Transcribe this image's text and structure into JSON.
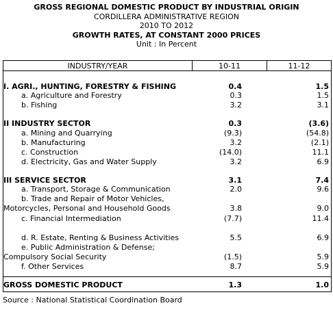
{
  "titles": {
    "line1": "GROSS REGIONAL DOMESTIC PRODUCT BY INDUSTRIAL ORIGIN",
    "line2": "CORDILLERA ADMINISTRATIVE REGION",
    "line3": "2010 TO 2012",
    "line4": "GROWTH RATES, AT CONSTANT 2000 PRICES",
    "line5": "Unit : In Percent"
  },
  "table": {
    "headers": [
      "INDUSTRY/YEAR",
      "10-11",
      "11-12"
    ],
    "rows": [
      {
        "label": "I. AGRI., HUNTING, FORESTRY & FISHING",
        "v1": "0.4",
        "v2": "1.5"
      },
      {
        "label": "a. Agriculture and Forestry",
        "v1": "0.3",
        "v2": "1.5"
      },
      {
        "label": "b. Fishing",
        "v1": "3.2",
        "v2": "3.1"
      },
      {
        "label": "II  INDUSTRY SECTOR",
        "v1": "0.3",
        "v2": "(3.6)"
      },
      {
        "label": "a. Mining and Quarrying",
        "v1": "(9.3)",
        "v2": "(54.8)"
      },
      {
        "label": "b. Manufacturing",
        "v1": "3.2",
        "v2": "(2.1)"
      },
      {
        "label": "c. Construction",
        "v1": "(14.0)",
        "v2": "11.1"
      },
      {
        "label": "d. Electricity, Gas and Water Supply",
        "v1": "3.2",
        "v2": "6.9"
      },
      {
        "label": "III  SERVICE SECTOR",
        "v1": "3.1",
        "v2": "7.4"
      },
      {
        "label": "a. Transport, Storage & Communication",
        "v1": "2.0",
        "v2": "9.6"
      },
      {
        "label": "b. Trade and Repair of Motor Vehicles,",
        "v1": "",
        "v2": ""
      },
      {
        "label": "Motorcycles, Personal and Household Goods",
        "v1": "3.8",
        "v2": "9.0"
      },
      {
        "label": "c.  Financial Intermediation",
        "v1": "(7.7)",
        "v2": "11.4"
      },
      {
        "label": "d. R. Estate, Renting & Business Activities",
        "v1": "5.5",
        "v2": "6.9"
      },
      {
        "label": "e. Public Administration & Defense;",
        "v1": "",
        "v2": ""
      },
      {
        "label": "Compulsory Social Security",
        "v1": "(1.5)",
        "v2": "5.9"
      },
      {
        "label": "f. Other Services",
        "v1": "8.7",
        "v2": "5.9"
      },
      {
        "label": "GROSS DOMESTIC PRODUCT",
        "v1": "1.3",
        "v2": "1.0"
      }
    ]
  },
  "source": "Source : National Statistical Coordination Board"
}
